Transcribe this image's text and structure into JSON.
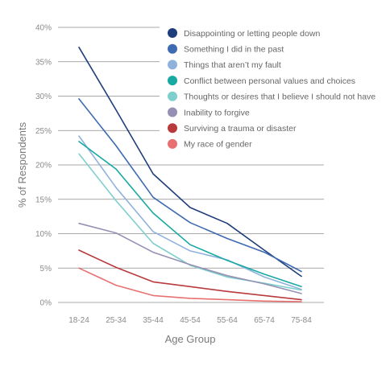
{
  "chart_data": {
    "type": "line",
    "xlabel": "Age Group",
    "ylabel": "% of Respondents",
    "categories": [
      "18-24",
      "25-34",
      "35-44",
      "45-54",
      "55-64",
      "65-74",
      "75-84"
    ],
    "ylim": [
      0,
      40
    ],
    "yticks": [
      0,
      5,
      10,
      15,
      20,
      25,
      30,
      35,
      40
    ],
    "ytick_labels": [
      "0%",
      "5%",
      "10%",
      "15%",
      "20%",
      "25%",
      "30%",
      "35%",
      "40%"
    ],
    "grid": true,
    "legend_position": "top-right",
    "series": [
      {
        "name": "Disappointing or letting people down",
        "color": "#1f3d7a",
        "values": [
          37.1,
          28.0,
          18.7,
          13.8,
          11.5,
          7.6,
          3.8
        ]
      },
      {
        "name": "Something I did in the past",
        "color": "#3d6ab0",
        "values": [
          29.6,
          22.8,
          15.3,
          11.6,
          9.3,
          7.3,
          4.5
        ]
      },
      {
        "name": "Things that aren’t my fault",
        "color": "#8fb2dc",
        "values": [
          24.2,
          16.7,
          10.3,
          7.5,
          6.2,
          3.7,
          1.9
        ]
      },
      {
        "name": "Conflict between personal values and choices",
        "color": "#17a9a2",
        "values": [
          23.4,
          19.4,
          13.0,
          8.4,
          6.1,
          4.1,
          2.3
        ]
      },
      {
        "name": "Thoughts or desires that I believe I should not have",
        "color": "#7fcfcd",
        "values": [
          21.6,
          14.8,
          8.6,
          5.4,
          3.7,
          2.8,
          1.8
        ]
      },
      {
        "name": "Inability to forgive",
        "color": "#9590b4",
        "values": [
          11.5,
          10.1,
          7.3,
          5.5,
          3.9,
          2.7,
          1.3
        ]
      },
      {
        "name": "Surviving a trauma or disaster",
        "color": "#b83a3c",
        "values": [
          7.6,
          5.1,
          3.0,
          2.3,
          1.6,
          1.0,
          0.4
        ]
      },
      {
        "name": "My race of gender",
        "color": "#e87070",
        "values": [
          5.0,
          2.5,
          1.0,
          0.6,
          0.4,
          0.2,
          0.1
        ]
      }
    ]
  }
}
